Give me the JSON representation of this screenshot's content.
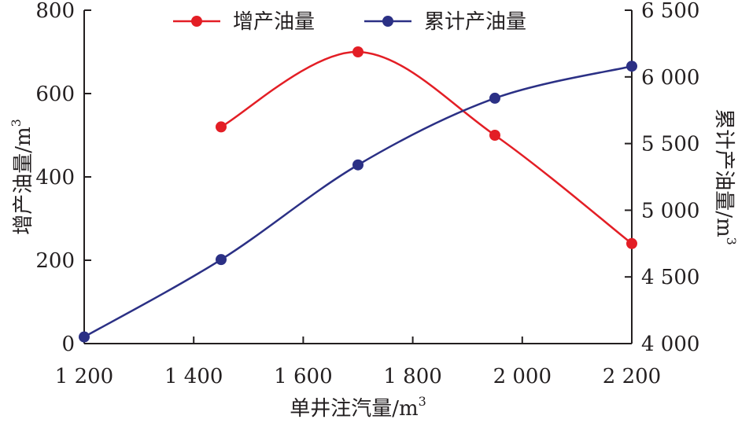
{
  "chart_data": {
    "type": "line",
    "xlabel": "单井注汽量/m",
    "xlabel_sup": "3",
    "ylabel_left": "增产油量/m",
    "ylabel_left_sup": "3",
    "ylabel_right": "累计产油量/m",
    "ylabel_right_sup": "3",
    "xlim": [
      1200,
      2200
    ],
    "ylim_left": [
      0,
      800
    ],
    "ylim_right": [
      4000,
      6500
    ],
    "x_ticks": [
      1200,
      1400,
      1600,
      1800,
      2000,
      2200
    ],
    "x_tick_labels": [
      "1 200",
      "1 400",
      "1 600",
      "1 800",
      "2 000",
      "2 200"
    ],
    "y_left_ticks": [
      0,
      200,
      400,
      600,
      800
    ],
    "y_left_tick_labels": [
      "0",
      "200",
      "400",
      "600",
      "800"
    ],
    "y_right_ticks": [
      4000,
      4500,
      5000,
      5500,
      6000,
      6500
    ],
    "y_right_tick_labels": [
      "4 000",
      "4 500",
      "5 000",
      "5 500",
      "6 000",
      "6 500"
    ],
    "legend_position": "top",
    "series": [
      {
        "name": "增产油量",
        "axis": "left",
        "color": "#e31e25",
        "x": [
          1450,
          1700,
          1950,
          2200
        ],
        "values": [
          520,
          700,
          500,
          240
        ]
      },
      {
        "name": "累计产油量",
        "axis": "right",
        "color": "#2b3085",
        "x": [
          1200,
          1450,
          1700,
          1950,
          2200
        ],
        "values": [
          4050,
          4630,
          5340,
          5840,
          6080
        ]
      }
    ]
  }
}
